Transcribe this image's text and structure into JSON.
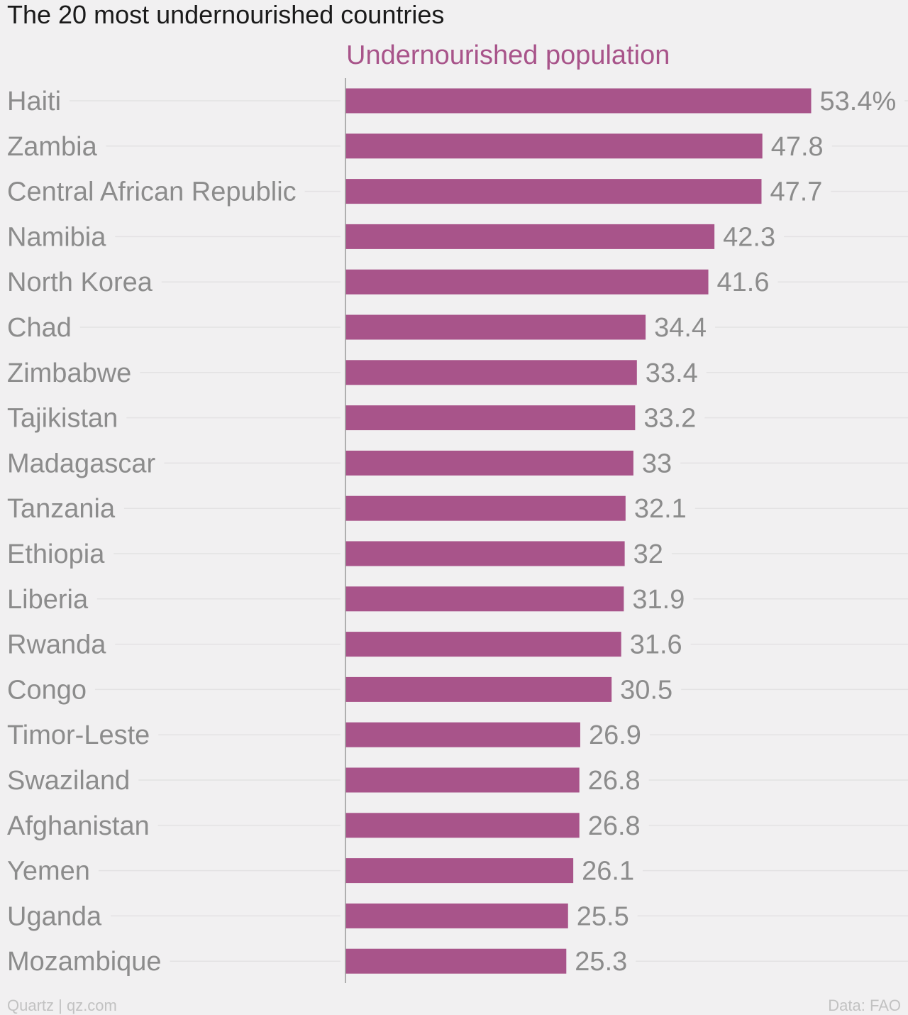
{
  "chart_data": {
    "type": "bar",
    "orientation": "horizontal",
    "title": "The 20 most undernourished countries",
    "series": [
      {
        "name": "Undernourished population",
        "values": [
          53.4,
          47.8,
          47.7,
          42.3,
          41.6,
          34.4,
          33.4,
          33.2,
          33,
          32.1,
          32,
          31.9,
          31.6,
          30.5,
          26.9,
          26.8,
          26.8,
          26.1,
          25.5,
          25.3
        ],
        "value_labels": [
          "53.4%",
          "47.8",
          "47.7",
          "42.3",
          "41.6",
          "34.4",
          "33.4",
          "33.2",
          "33",
          "32.1",
          "32",
          "31.9",
          "31.6",
          "30.5",
          "26.9",
          "26.8",
          "26.8",
          "26.1",
          "25.5",
          "25.3"
        ],
        "color": "#a8548a"
      }
    ],
    "categories": [
      "Haiti",
      "Zambia",
      "Central African Republic",
      "Namibia",
      "North Korea",
      "Chad",
      "Zimbabwe",
      "Tajikistan",
      "Madagascar",
      "Tanzania",
      "Ethiopia",
      "Liberia",
      "Rwanda",
      "Congo",
      "Timor-Leste",
      "Swaziland",
      "Afghanistan",
      "Yemen",
      "Uganda",
      "Mozambique"
    ],
    "xlim": [
      0,
      53.4
    ],
    "grid": true,
    "unit": "%"
  },
  "footer": {
    "source_left": "Quartz | qz.com",
    "source_right": "Data: FAO"
  },
  "colors": {
    "background": "#f1f0f1",
    "bar": "#a8548a",
    "label": "#8c8c8c",
    "gridline": "#e3e2e3"
  }
}
